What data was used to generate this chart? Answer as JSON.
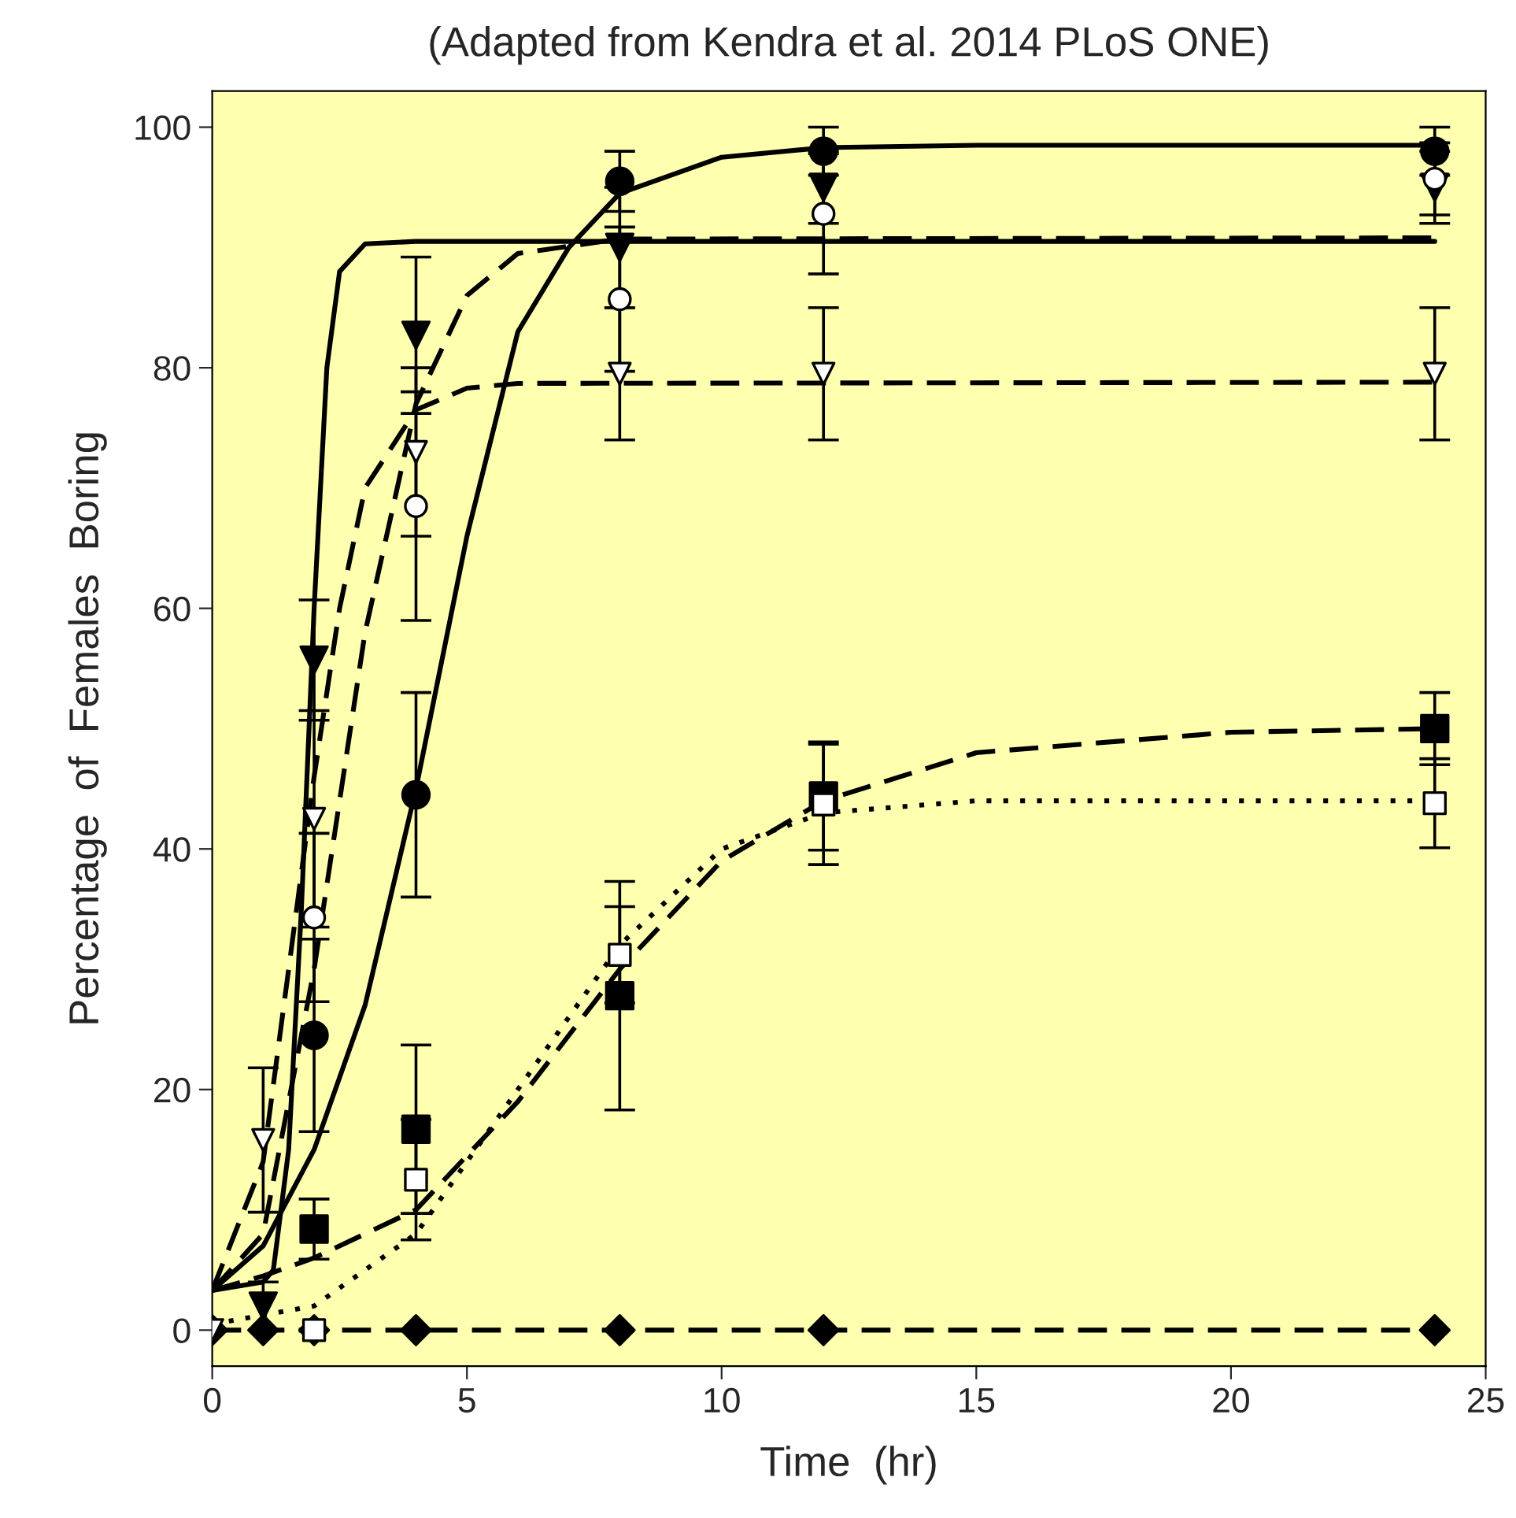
{
  "chart_data": {
    "type": "scatter",
    "title": "(Adapted from Kendra et al. 2014 PLoS ONE)",
    "xlabel": "Time  (hr)",
    "ylabel": "Percentage  of  Females  Boring",
    "x": [
      0,
      1,
      2,
      4,
      8,
      12,
      24
    ],
    "xlim": [
      0,
      25
    ],
    "xticks": [
      0,
      5,
      10,
      15,
      20,
      25
    ],
    "ylim": [
      -3,
      103
    ],
    "yticks": [
      0,
      20,
      40,
      60,
      80,
      100
    ],
    "grid": false,
    "legend": false,
    "series": [
      {
        "type": "line",
        "color": "#000000",
        "line_style": "solid",
        "x": [
          0,
          1,
          2,
          3,
          4,
          5,
          6,
          7,
          8,
          10,
          12,
          15,
          24
        ],
        "values": [
          3.3,
          7,
          15,
          27,
          45,
          66,
          83,
          90,
          94.5,
          97.5,
          98.3,
          98.5,
          98.5
        ]
      },
      {
        "type": "line",
        "color": "#000000",
        "line_style": "solid",
        "x": [
          0,
          1,
          1.2,
          1.5,
          1.75,
          2,
          2.25,
          2.5,
          3,
          4,
          24
        ],
        "values": [
          3.3,
          4,
          5,
          15,
          35,
          60,
          80,
          88,
          90.3,
          90.5,
          90.5
        ]
      },
      {
        "type": "line",
        "color": "#000000",
        "line_style": "dashed",
        "x": [
          0,
          1,
          2,
          3,
          4,
          5,
          6,
          8,
          24
        ],
        "values": [
          3.3,
          8,
          30,
          58,
          77,
          86,
          89.5,
          90.7,
          90.8
        ]
      },
      {
        "type": "line",
        "color": "#000000",
        "line_style": "dashed",
        "x": [
          0,
          1,
          2,
          2.5,
          3,
          4,
          5,
          6,
          24
        ],
        "values": [
          3.3,
          14,
          46,
          60,
          70,
          76.5,
          78.3,
          78.7,
          78.8
        ]
      },
      {
        "type": "line",
        "color": "#000000",
        "line_style": "dashed",
        "x": [
          0,
          1,
          2,
          4,
          6,
          8,
          10,
          12,
          15,
          20,
          24
        ],
        "values": [
          3.3,
          4.5,
          6,
          10,
          19,
          30,
          39,
          44,
          48,
          49.7,
          50
        ]
      },
      {
        "type": "line",
        "color": "#000000",
        "line_style": "dotted",
        "x": [
          0,
          2,
          4,
          6,
          8,
          10,
          12,
          15,
          24
        ],
        "values": [
          0.5,
          2,
          8,
          20,
          32,
          40,
          43,
          44,
          44
        ]
      },
      {
        "type": "line",
        "color": "#000000",
        "line_style": "dashed",
        "marker": "diamond",
        "values": [
          0,
          0,
          0,
          0,
          0,
          0,
          0
        ]
      },
      {
        "color": "#000000",
        "marker": "circle",
        "values": [
          null,
          null,
          24.5,
          44.5,
          95.5,
          98,
          98
        ],
        "errors": [
          null,
          null,
          8,
          8.5,
          2.5,
          2,
          2
        ]
      },
      {
        "color": "#ffffff",
        "marker": "circle",
        "values": [
          null,
          null,
          34.3,
          68.5,
          85.7,
          92.8,
          95.7
        ],
        "errors": [
          null,
          null,
          7,
          9.5,
          6,
          5,
          3
        ]
      },
      {
        "color": "#000000",
        "marker": "triangle",
        "values": [
          null,
          2,
          55.7,
          82.7,
          90,
          95,
          95
        ],
        "errors": [
          null,
          2,
          5,
          6.5,
          5,
          3,
          3
        ]
      },
      {
        "color": "#ffffff",
        "marker": "triangle",
        "values": [
          0,
          15.8,
          42.5,
          73,
          79.5,
          79.5,
          79.5
        ],
        "errors": [
          null,
          6,
          9,
          7,
          5.5,
          5.5,
          5.5
        ]
      },
      {
        "color": "#000000",
        "marker": "square",
        "values": [
          null,
          null,
          8.4,
          16.7,
          27.8,
          44.4,
          50
        ],
        "errors": [
          null,
          null,
          2.5,
          7,
          9.5,
          4.5,
          3
        ]
      },
      {
        "color": "#ffffff",
        "marker": "square",
        "values": [
          null,
          null,
          0,
          12.5,
          31.2,
          43.7,
          43.8
        ],
        "errors": [
          null,
          null,
          null,
          5,
          4,
          5,
          3.7
        ]
      }
    ]
  }
}
